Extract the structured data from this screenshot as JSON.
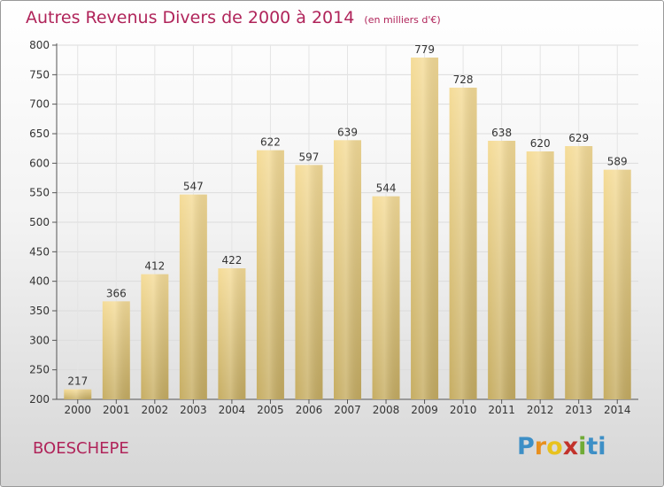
{
  "chart_data": {
    "type": "bar",
    "title": "Autres Revenus Divers de 2000 à 2014",
    "subtitle": "(en milliers d'€)",
    "categories": [
      "2000",
      "2001",
      "2002",
      "2003",
      "2004",
      "2005",
      "2006",
      "2007",
      "2008",
      "2009",
      "2010",
      "2011",
      "2012",
      "2013",
      "2014"
    ],
    "values": [
      217,
      366,
      412,
      547,
      422,
      622,
      597,
      639,
      544,
      779,
      728,
      638,
      620,
      629,
      589
    ],
    "ylim": [
      200,
      800
    ],
    "yticks": [
      200,
      250,
      300,
      350,
      400,
      450,
      500,
      550,
      600,
      650,
      700,
      750,
      800
    ],
    "grid": true,
    "bar_color_top": "#f5dc98",
    "bar_color_bottom": "#c6ad63"
  },
  "place": "BOESCHEPE",
  "logo": [
    "P",
    "r",
    "o",
    "x",
    "i",
    "ti"
  ]
}
